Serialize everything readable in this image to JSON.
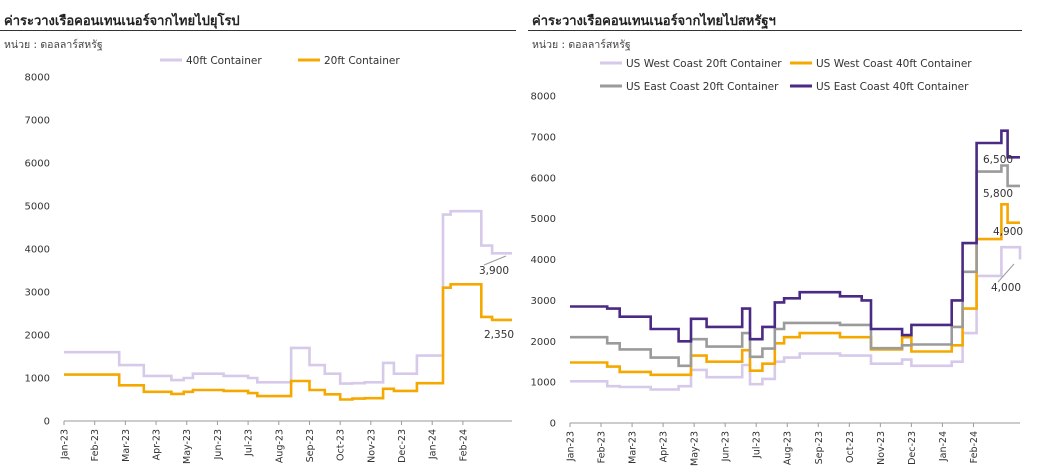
{
  "charts": [
    {
      "id": "eu",
      "title": "ค่าระวางเรือคอนเทนเนอร์จากไทยไปยุโรป",
      "unit": "หน่วย : ดอลลาร์สหรัฐ",
      "end_labels": [
        "3,900",
        "2,350"
      ]
    },
    {
      "id": "us",
      "title": "ค่าระวางเรือคอนเทนเนอร์จากไทยไปสหรัฐฯ",
      "unit": "หน่วย : ดอลลาร์สหรัฐ",
      "end_labels": [
        "6,500",
        "5,800",
        "4,900",
        "4,000"
      ]
    }
  ],
  "chart_data": [
    {
      "type": "line",
      "step": true,
      "title": "ค่าระวางเรือคอนเทนเนอร์จากไทยไปยุโรป",
      "ylim": [
        0,
        8000
      ],
      "yticks": [
        0,
        1000,
        2000,
        3000,
        4000,
        5000,
        6000,
        7000,
        8000
      ],
      "grid": false,
      "legend": "top-center",
      "categories": [
        "Jan-23",
        "Feb-23",
        "Mar-23",
        "Apr-23",
        "May-23",
        "Jun-23",
        "Jul-23",
        "Aug-23",
        "Sep-23",
        "Oct-23",
        "Nov-23",
        "Dec-23",
        "Jan-24",
        "Feb-24"
      ],
      "x_end": 14.6,
      "series": [
        {
          "name": "40ft Container",
          "color": "#d7c9ea",
          "x": [
            0,
            0.9,
            1.8,
            2.6,
            2.9,
            3.5,
            3.9,
            4.2,
            5.2,
            5.7,
            6.0,
            6.3,
            7.0,
            7.4,
            7.7,
            8.0,
            8.5,
            9.0,
            9.4,
            9.8,
            10.4,
            10.75,
            11.2,
            11.5,
            11.9,
            12.35,
            12.6,
            12.85,
            13.6,
            13.95,
            14.2,
            14.6
          ],
          "y": [
            1600,
            1600,
            1300,
            1050,
            1050,
            950,
            1000,
            1100,
            1050,
            1050,
            1000,
            900,
            900,
            1700,
            1700,
            1300,
            1100,
            870,
            880,
            900,
            1350,
            1100,
            1100,
            1520,
            1520,
            4800,
            4880,
            4880,
            4080,
            3900,
            3900,
            3900
          ]
        },
        {
          "name": "20ft Container",
          "color": "#f5a800",
          "x": [
            0,
            0.9,
            1.8,
            2.6,
            2.9,
            3.5,
            3.9,
            4.2,
            5.2,
            5.7,
            6.0,
            6.3,
            7.0,
            7.4,
            7.7,
            8.0,
            8.5,
            9.0,
            9.4,
            9.8,
            10.4,
            10.75,
            11.2,
            11.5,
            11.9,
            12.35,
            12.6,
            12.85,
            13.6,
            13.95,
            14.2,
            14.6
          ],
          "y": [
            1080,
            1080,
            830,
            680,
            680,
            630,
            680,
            720,
            700,
            700,
            650,
            580,
            580,
            930,
            930,
            720,
            620,
            500,
            520,
            530,
            750,
            700,
            700,
            880,
            880,
            3100,
            3180,
            3180,
            2420,
            2350,
            2350,
            2350
          ]
        }
      ]
    },
    {
      "type": "line",
      "step": true,
      "title": "ค่าระวางเรือคอนเทนเนอร์จากไทยไปสหรัฐฯ",
      "ylim": [
        0,
        8000
      ],
      "yticks": [
        0,
        1000,
        2000,
        3000,
        4000,
        5000,
        6000,
        7000,
        8000
      ],
      "grid": false,
      "legend": "top-center",
      "categories": [
        "Jan-23",
        "Feb-23",
        "Mar-23",
        "Apr-23",
        "May-23",
        "Jun-23",
        "Jul-23",
        "Aug-23",
        "Sep-23",
        "Oct-23",
        "Nov-23",
        "Dec-23",
        "Jan-24",
        "Feb-24"
      ],
      "x_end": 14.5,
      "series": [
        {
          "name": "US West Coast 20ft Container",
          "color": "#d7c9ea",
          "x": [
            0,
            0.9,
            1.2,
            1.6,
            2.0,
            2.6,
            2.9,
            3.5,
            3.9,
            4.4,
            4.8,
            5.3,
            5.55,
            5.8,
            6.2,
            6.6,
            6.9,
            7.4,
            8.3,
            8.7,
            9.4,
            9.7,
            10.3,
            10.7,
            11.0,
            11.6,
            12.3,
            12.65,
            13.1,
            13.55,
            13.9,
            14.1,
            14.5
          ],
          "y": [
            1020,
            1020,
            900,
            880,
            880,
            820,
            820,
            900,
            1300,
            1120,
            1120,
            1120,
            1420,
            950,
            1080,
            1500,
            1600,
            1700,
            1700,
            1650,
            1650,
            1450,
            1450,
            1550,
            1400,
            1400,
            1500,
            2200,
            3600,
            3600,
            4300,
            4300,
            4000
          ]
        },
        {
          "name": "US West Coast 40ft Container",
          "color": "#f5a800",
          "x": [
            0,
            0.9,
            1.2,
            1.6,
            2.0,
            2.6,
            2.9,
            3.5,
            3.9,
            4.4,
            4.8,
            5.3,
            5.55,
            5.8,
            6.2,
            6.6,
            6.9,
            7.4,
            8.3,
            8.7,
            9.4,
            9.7,
            10.3,
            10.7,
            11.0,
            11.6,
            12.3,
            12.65,
            13.1,
            13.55,
            13.9,
            14.1,
            14.5
          ],
          "y": [
            1480,
            1480,
            1380,
            1250,
            1250,
            1180,
            1180,
            1180,
            1650,
            1500,
            1500,
            1500,
            1780,
            1280,
            1450,
            1950,
            2100,
            2200,
            2200,
            2100,
            2100,
            1800,
            1800,
            2100,
            1750,
            1750,
            1900,
            2800,
            4500,
            4500,
            5350,
            4900,
            4900
          ]
        },
        {
          "name": "US East Coast 20ft Container",
          "color": "#9b9b9b",
          "x": [
            0,
            0.9,
            1.2,
            1.6,
            2.0,
            2.6,
            2.9,
            3.5,
            3.9,
            4.4,
            4.8,
            5.3,
            5.55,
            5.8,
            6.2,
            6.6,
            6.9,
            7.4,
            8.3,
            8.7,
            9.4,
            9.7,
            10.3,
            10.7,
            11.0,
            11.6,
            12.3,
            12.65,
            13.1,
            13.55,
            13.9,
            14.1,
            14.5
          ],
          "y": [
            2100,
            2100,
            1950,
            1800,
            1800,
            1600,
            1600,
            1400,
            2050,
            1870,
            1870,
            1870,
            2200,
            1620,
            1820,
            2300,
            2450,
            2450,
            2450,
            2400,
            2400,
            1830,
            1830,
            1900,
            1920,
            1920,
            2350,
            3700,
            6150,
            6150,
            6300,
            5800,
            5800
          ]
        },
        {
          "name": "US East Coast 40ft Container",
          "color": "#4a2a83",
          "x": [
            0,
            0.9,
            1.2,
            1.6,
            2.0,
            2.6,
            2.9,
            3.5,
            3.9,
            4.4,
            4.8,
            5.3,
            5.55,
            5.8,
            6.2,
            6.6,
            6.9,
            7.4,
            8.3,
            8.7,
            9.4,
            9.7,
            10.3,
            10.7,
            11.0,
            11.6,
            12.3,
            12.65,
            13.1,
            13.55,
            13.9,
            14.1,
            14.5
          ],
          "y": [
            2850,
            2850,
            2800,
            2600,
            2600,
            2300,
            2300,
            2000,
            2550,
            2350,
            2350,
            2350,
            2800,
            2050,
            2350,
            2950,
            3050,
            3200,
            3200,
            3100,
            3000,
            2300,
            2300,
            2150,
            2400,
            2400,
            3000,
            4400,
            6850,
            6850,
            7150,
            6500,
            6500
          ]
        }
      ]
    }
  ]
}
